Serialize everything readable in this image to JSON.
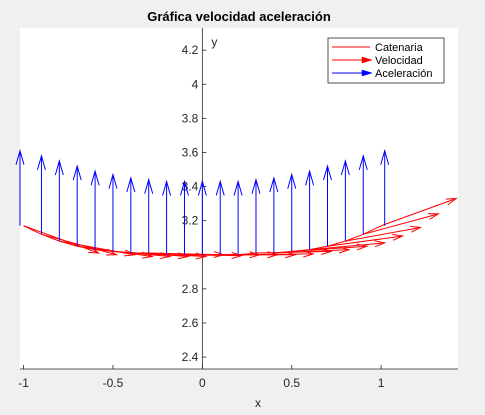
{
  "chart_data": {
    "type": "line",
    "title": "Gráfica velocidad aceleración",
    "xlabel": "x",
    "ylabel": "y",
    "xlim": [
      -1.02,
      1.43
    ],
    "ylim": [
      2.33,
      4.33
    ],
    "xticks": [
      -1,
      -0.5,
      0,
      0.5,
      1
    ],
    "xtick_labels": [
      "-1",
      "-0.5",
      "0",
      "0.5",
      "1"
    ],
    "yticks": [
      2.4,
      2.6,
      2.8,
      3.2,
      3.4,
      3.6,
      3.8,
      4,
      4.2
    ],
    "ytick_labels": [
      "2.4",
      "2.6",
      "2.8",
      "3.2",
      "3.4",
      "3.6",
      "3.8",
      "4",
      "4.2"
    ],
    "grid": false,
    "legend_placement": "top-right",
    "series": [
      {
        "name": "Catenaria",
        "color": "#ff0000",
        "x": [
          -1,
          -0.9,
          -0.8,
          -0.7,
          -0.6,
          -0.5,
          -0.4,
          -0.3,
          -0.2,
          -0.1,
          0,
          0.1,
          0.2,
          0.3,
          0.4,
          0.5,
          0.6,
          0.7,
          0.8,
          0.9,
          1
        ],
        "y": [
          3.17,
          3.12,
          3.08,
          3.05,
          3.03,
          3.02,
          3.01,
          3.01,
          3.0,
          3.0,
          3.0,
          3.0,
          3.0,
          3.01,
          3.01,
          3.02,
          3.03,
          3.05,
          3.08,
          3.12,
          3.17
        ]
      },
      {
        "name": "Velocidad",
        "color": "#ff0000",
        "type": "quiver",
        "x": [
          -1,
          -0.9,
          -0.8,
          -0.7,
          -0.6,
          -0.5,
          -0.4,
          -0.3,
          -0.2,
          -0.1,
          0,
          0.1,
          0.2,
          0.3,
          0.4,
          0.5,
          0.6,
          0.7,
          0.8,
          0.9,
          1
        ],
        "y": [
          3.17,
          3.12,
          3.08,
          3.05,
          3.03,
          3.02,
          3.01,
          3.01,
          3.0,
          3.0,
          3.0,
          3.0,
          3.0,
          3.01,
          3.01,
          3.02,
          3.03,
          3.05,
          3.08,
          3.12,
          3.17
        ],
        "u": [
          0.42,
          0.42,
          0.42,
          0.42,
          0.42,
          0.42,
          0.42,
          0.42,
          0.42,
          0.42,
          0.42,
          0.42,
          0.42,
          0.42,
          0.42,
          0.42,
          0.42,
          0.42,
          0.42,
          0.42,
          0.42
        ],
        "v": [
          -0.16,
          -0.12,
          -0.08,
          -0.06,
          -0.04,
          -0.03,
          -0.02,
          -0.01,
          -0.005,
          0.0,
          0.0,
          0.0,
          0.005,
          0.01,
          0.02,
          0.03,
          0.04,
          0.06,
          0.08,
          0.12,
          0.16
        ]
      },
      {
        "name": "Aceleración",
        "color": "#0000ff",
        "type": "quiver",
        "x": [
          -1.02,
          -0.9,
          -0.8,
          -0.7,
          -0.6,
          -0.5,
          -0.4,
          -0.3,
          -0.2,
          -0.1,
          0,
          0.1,
          0.2,
          0.3,
          0.4,
          0.5,
          0.6,
          0.7,
          0.8,
          0.9,
          1.02
        ],
        "y": [
          3.17,
          3.12,
          3.08,
          3.05,
          3.03,
          3.02,
          3.01,
          3.01,
          3.0,
          3.0,
          3.0,
          3.0,
          3.0,
          3.01,
          3.01,
          3.02,
          3.03,
          3.05,
          3.08,
          3.12,
          3.17
        ],
        "u": [
          0,
          0,
          0,
          0,
          0,
          0,
          0,
          0,
          0,
          0,
          0,
          0,
          0,
          0,
          0,
          0,
          0,
          0,
          0,
          0,
          0
        ],
        "v": [
          0.44,
          0.46,
          0.47,
          0.47,
          0.46,
          0.45,
          0.44,
          0.43,
          0.43,
          0.43,
          0.43,
          0.43,
          0.43,
          0.43,
          0.44,
          0.45,
          0.46,
          0.47,
          0.47,
          0.46,
          0.44
        ]
      }
    ]
  }
}
